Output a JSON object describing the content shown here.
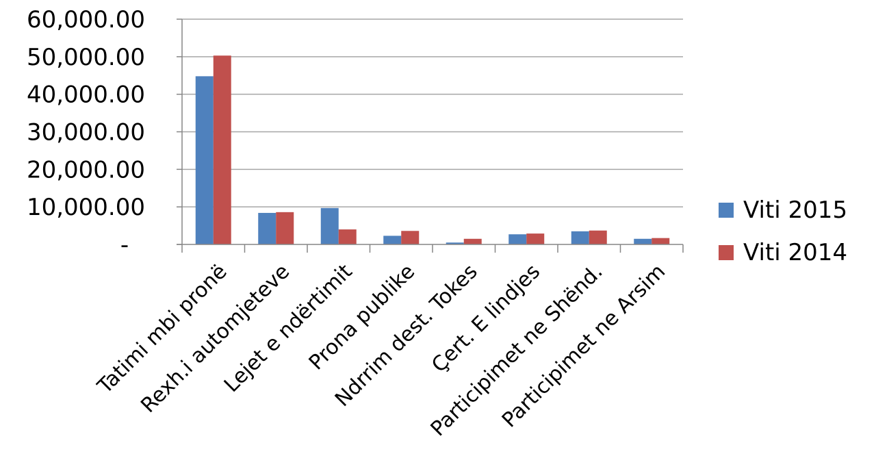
{
  "chart_data": {
    "type": "bar",
    "categories": [
      "Tatimi mbi pronë",
      "Rexh.i automjeteve",
      "Lejet e ndërtimit",
      "Prona publike",
      "Ndrrim dest. Tokes",
      "Çert. E lindjes",
      "Participimet ne Shënd.",
      "Participimet ne Arsim"
    ],
    "series": [
      {
        "name": "Viti 2015",
        "color": "#4f81bd",
        "values": [
          44800,
          8400,
          9700,
          2300,
          500,
          2700,
          3500,
          1500
        ]
      },
      {
        "name": "Viti 2014",
        "color": "#c0504d",
        "values": [
          50300,
          8600,
          4000,
          3600,
          1500,
          2900,
          3700,
          1700
        ]
      }
    ],
    "ylim": [
      0,
      60000
    ],
    "yticks": [
      0,
      10000,
      20000,
      30000,
      40000,
      50000,
      60000
    ],
    "ytick_labels": [
      "-",
      "10,000.00",
      "20,000.00",
      "30,000.00",
      "40,000.00",
      "50,000.00",
      "60,000.00"
    ],
    "grid": true,
    "legend_position": "right",
    "gridline_color": "#a6a6a6",
    "axis_color": "#868686"
  }
}
